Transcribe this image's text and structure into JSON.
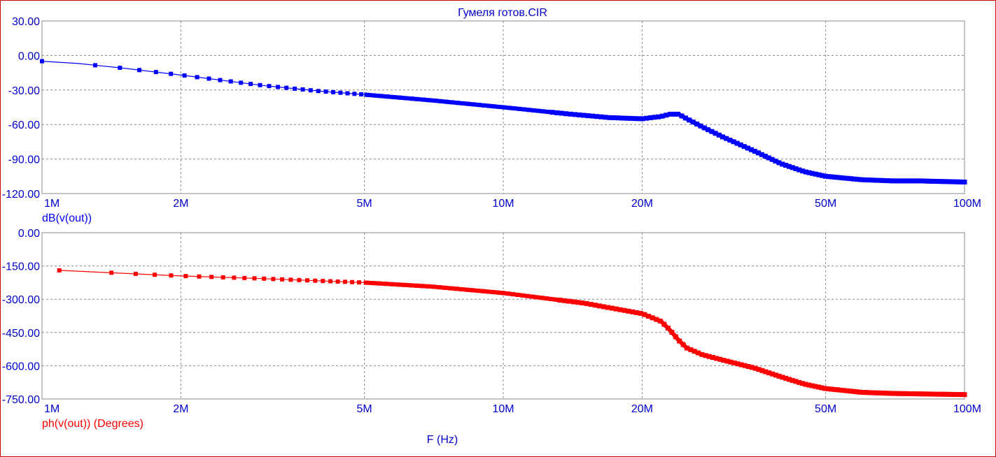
{
  "title": "Гумеля готов.CIR",
  "xlabel": "F (Hz)",
  "colors": {
    "frame": "#cc0000",
    "grid": "#888888",
    "top_series": "#0000ff",
    "bottom_series": "#ff0000",
    "title": "#0000cc"
  },
  "chart_data": [
    {
      "type": "line",
      "xscale": "log",
      "xlim": [
        1000000,
        100000000
      ],
      "x_ticks": [
        1000000,
        2000000,
        5000000,
        10000000,
        20000000,
        50000000,
        100000000
      ],
      "x_tick_labels": [
        "1M",
        "2M",
        "5M",
        "10M",
        "20M",
        "50M",
        "100M"
      ],
      "ylim": [
        -120,
        30
      ],
      "y_ticks": [
        30,
        0,
        -30,
        -60,
        -90,
        -120
      ],
      "y_tick_labels": [
        "30.00",
        "0.00",
        "-30.00",
        "-60.00",
        "-90.00",
        "-120.00"
      ],
      "grid": true,
      "series": [
        {
          "name": "dB(v(out))",
          "color": "#0000ff",
          "x": [
            1000000,
            1200000,
            1500000,
            2000000,
            3000000,
            4000000,
            5000000,
            7000000,
            10000000,
            14000000,
            17000000,
            20000000,
            22000000,
            23000000,
            24000000,
            25000000,
            27000000,
            30000000,
            35000000,
            40000000,
            45000000,
            50000000,
            60000000,
            70000000,
            80000000,
            100000000
          ],
          "y": [
            -5,
            -7,
            -11,
            -17,
            -26,
            -31,
            -34,
            -39,
            -45,
            -51,
            -54,
            -55,
            -53,
            -51,
            -51,
            -55,
            -62,
            -71,
            -83,
            -94,
            -101,
            -105,
            -108,
            -109,
            -109,
            -110
          ]
        }
      ]
    },
    {
      "type": "line",
      "xscale": "log",
      "xlim": [
        1000000,
        100000000
      ],
      "x_ticks": [
        1000000,
        2000000,
        5000000,
        10000000,
        20000000,
        50000000,
        100000000
      ],
      "x_tick_labels": [
        "1M",
        "2M",
        "5M",
        "10M",
        "20M",
        "50M",
        "100M"
      ],
      "ylim": [
        -750,
        0
      ],
      "y_ticks": [
        0,
        -150,
        -300,
        -450,
        -600,
        -750
      ],
      "y_tick_labels": [
        "0.00",
        "-150.00",
        "-300.00",
        "-450.00",
        "-600.00",
        "-750.00"
      ],
      "grid": true,
      "series": [
        {
          "name": "ph(v(out)) (Degrees)",
          "color": "#ff0000",
          "x": [
            1090000,
            1500000,
            2000000,
            3000000,
            5000000,
            7000000,
            10000000,
            15000000,
            20000000,
            22000000,
            23000000,
            24000000,
            25000000,
            27000000,
            30000000,
            35000000,
            40000000,
            45000000,
            50000000,
            60000000,
            70000000,
            80000000,
            100000000
          ],
          "y": [
            -170,
            -183,
            -195,
            -207,
            -225,
            -243,
            -272,
            -318,
            -365,
            -400,
            -440,
            -485,
            -520,
            -550,
            -575,
            -610,
            -650,
            -683,
            -703,
            -720,
            -725,
            -727,
            -730
          ]
        }
      ]
    }
  ]
}
